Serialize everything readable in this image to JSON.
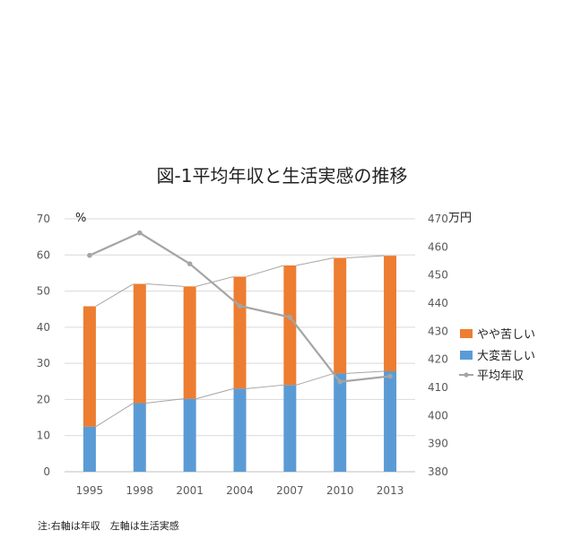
{
  "chart_data": {
    "type": "bar",
    "title": "図-1平均年収と生活実感の推移",
    "categories": [
      "1995",
      "1998",
      "2001",
      "2004",
      "2007",
      "2010",
      "2013"
    ],
    "left_axis": {
      "unit_label": "%",
      "ylim": [
        0,
        70
      ],
      "ticks": [
        "0",
        "10",
        "20",
        "30",
        "40",
        "50",
        "60",
        "70"
      ]
    },
    "right_axis": {
      "unit_label": "万円",
      "ylim": [
        380,
        470
      ],
      "ticks": [
        "380",
        "390",
        "400",
        "410",
        "420",
        "430",
        "440",
        "450",
        "460",
        "470"
      ]
    },
    "series": [
      {
        "name": "大変苦しい",
        "kind": "stacked-bar",
        "axis": "left",
        "color": "#5b9bd5",
        "values": [
          12.5,
          19,
          20.2,
          23,
          24,
          27.2,
          27.8
        ]
      },
      {
        "name": "やや苦しい",
        "kind": "stacked-bar",
        "axis": "left",
        "color": "#ed7d31",
        "values": [
          33.3,
          33,
          31.1,
          31,
          33.1,
          32,
          32
        ]
      },
      {
        "name": "平均年収",
        "kind": "line",
        "axis": "right",
        "color": "#a5a5a5",
        "values": [
          457,
          465,
          454,
          439,
          435,
          412,
          414
        ]
      }
    ],
    "legend": {
      "position": "right",
      "order": [
        "やや苦しい",
        "大変苦しい",
        "平均年収"
      ]
    },
    "grid": true
  },
  "note": "注:右軸は年収　左軸は生活実感"
}
